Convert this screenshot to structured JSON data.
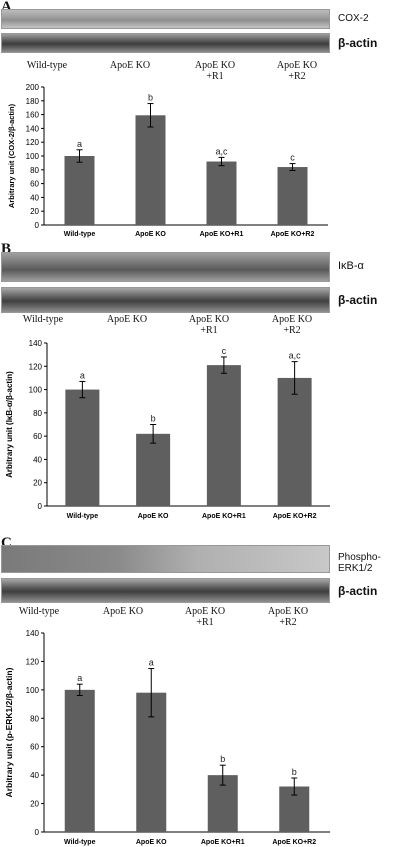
{
  "panels": [
    {
      "letter": "A",
      "blot_top_label": "COX-2",
      "blot_bottom_label": "β-actin",
      "lanes": [
        "Wild-type",
        "ApoE KO",
        "ApoE KO\n+R1",
        "ApoE KO\n+R2"
      ]
    },
    {
      "letter": "B",
      "blot_top_label": "IκB-α",
      "blot_bottom_label": "β-actin",
      "lanes": [
        "Wild-type",
        "ApoE KO",
        "ApoE KO\n+R1",
        "ApoE KO\n+R2"
      ]
    },
    {
      "letter": "C",
      "blot_top_label": "Phospho-ERK1/2",
      "blot_bottom_label": "β-actin",
      "lanes": [
        "Wild-type",
        "ApoE KO",
        "ApoE KO\n+R1",
        "ApoE KO\n+R2"
      ]
    }
  ],
  "chart_data": [
    {
      "type": "bar",
      "categories": [
        "Wild-type",
        "ApoE KO",
        "ApoE KO+R1",
        "ApoE KO+R2"
      ],
      "values": [
        100,
        159,
        92,
        84
      ],
      "errors": [
        9,
        17,
        6,
        5
      ],
      "significance": [
        "a",
        "b",
        "a,c",
        "c"
      ],
      "ylabel": "Arbitrary unit (COX-2/β-actin)",
      "ylim": [
        0,
        200
      ],
      "yticks": [
        0,
        20,
        40,
        60,
        80,
        100,
        120,
        140,
        160,
        180,
        200
      ],
      "bar_color": "#5f5f5f"
    },
    {
      "type": "bar",
      "categories": [
        "Wild-type",
        "ApoE KO",
        "ApoE KO+R1",
        "ApoE KO+R2"
      ],
      "values": [
        100,
        62,
        121,
        110
      ],
      "errors": [
        7,
        8,
        7,
        14
      ],
      "significance": [
        "a",
        "b",
        "c",
        "a,c"
      ],
      "ylabel": "Arbitrary unit (IκB-α/β-actin)",
      "ylim": [
        0,
        140
      ],
      "yticks": [
        0,
        20,
        40,
        60,
        80,
        100,
        120,
        140
      ],
      "bar_color": "#5f5f5f"
    },
    {
      "type": "bar",
      "categories": [
        "Wild-type",
        "ApoE KO",
        "ApoE KO+R1",
        "ApoE KO+R2"
      ],
      "values": [
        100,
        98,
        40,
        32
      ],
      "errors": [
        4,
        17,
        7,
        6
      ],
      "significance": [
        "a",
        "a",
        "b",
        "b"
      ],
      "ylabel": "Arbitrary unit (p-ERK1/2/β-actin)",
      "ylim": [
        0,
        140
      ],
      "yticks": [
        0,
        20,
        40,
        60,
        80,
        100,
        120,
        140
      ],
      "bar_color": "#5f5f5f"
    }
  ]
}
